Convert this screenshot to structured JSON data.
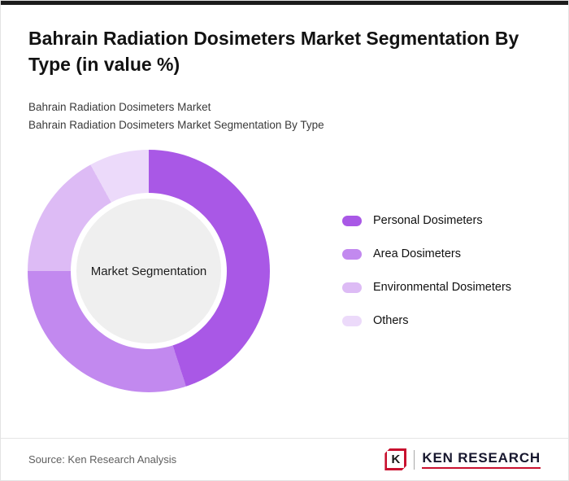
{
  "header": {
    "title": "Bahrain Radiation Dosimeters Market Segmentation By Type (in value %)",
    "subtitle_line1": "Bahrain Radiation Dosimeters Market",
    "subtitle_line2": "Bahrain Radiation Dosimeters Market Segmentation By Type"
  },
  "chart_data": {
    "type": "pie",
    "donut": true,
    "title": "Bahrain Radiation Dosimeters Market Segmentation By Type (in value %)",
    "center_label": "Market Segmentation",
    "categories": [
      "Personal Dosimeters",
      "Area Dosimeters",
      "Environmental Dosimeters",
      "Others"
    ],
    "values": [
      45,
      30,
      17,
      8
    ],
    "colors": [
      "#a958e6",
      "#c289ef",
      "#ddbbf5",
      "#ecdafa"
    ],
    "legend_position": "right",
    "start_angle_deg": 0,
    "direction": "clockwise",
    "hole_color": "#efefef"
  },
  "footer": {
    "source": "Source: Ken Research Analysis",
    "logo": {
      "letter": "K",
      "text": "KEN RESEARCH"
    }
  },
  "colors": {
    "accent_bar": "#1b1b1b",
    "logo_red": "#c8102e"
  }
}
